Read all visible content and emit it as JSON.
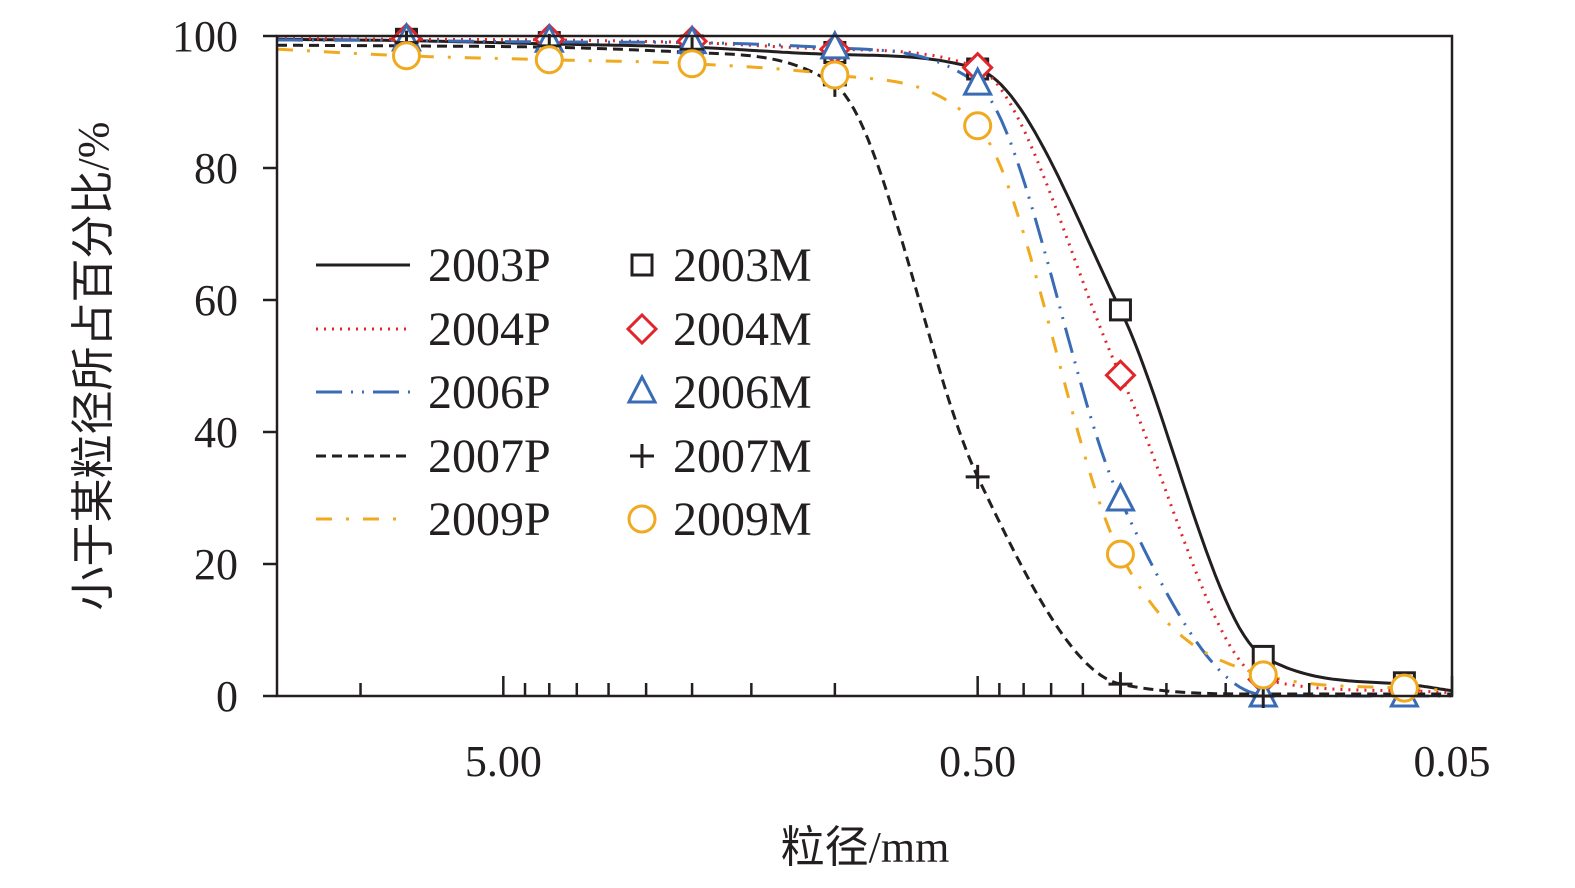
{
  "chart_data": {
    "type": "line",
    "title": "",
    "xlabel": "粒径/mm",
    "ylabel": "小于某粒径所占百分比/%",
    "xscale": "log",
    "x_reversed": true,
    "xlim": [
      15,
      0.05
    ],
    "ylim": [
      0,
      100
    ],
    "x_tick_labels": [
      {
        "value": 5,
        "label": "5.00"
      },
      {
        "value": 0.5,
        "label": "0.50"
      },
      {
        "value": 0.05,
        "label": "0.05"
      }
    ],
    "x_minor_ticks": [
      10,
      5,
      4.5,
      4,
      3.5,
      3,
      2.5,
      2,
      1.5,
      1,
      0.5,
      0.45,
      0.4,
      0.35,
      0.3,
      0.25,
      0.2,
      0.15,
      0.1,
      0.05
    ],
    "y_ticks": [
      0,
      20,
      40,
      60,
      80,
      100
    ],
    "grid": false,
    "legend_placement": "center-left",
    "colors": {
      "black": "#231f20",
      "red": "#e0262b",
      "blue": "#3a6bb5",
      "orange": "#f0aa1f"
    },
    "series": [
      {
        "name": "2003P",
        "kind": "line",
        "style": "solid",
        "color": "#231f20",
        "x": [
          15,
          8,
          4,
          2,
          1,
          0.5,
          0.25,
          0.125,
          0.063,
          0.05
        ],
        "y": [
          99.5,
          99.3,
          98.8,
          98.3,
          97.2,
          95.0,
          58.5,
          6.0,
          1.8,
          0.8
        ]
      },
      {
        "name": "2004P",
        "kind": "line",
        "style": "dotted",
        "color": "#e0262b",
        "x": [
          15,
          8,
          4,
          2,
          1,
          0.5,
          0.25,
          0.125,
          0.063,
          0.05
        ],
        "y": [
          99.6,
          99.5,
          99.4,
          99.0,
          98.0,
          95.2,
          48.6,
          2.5,
          0.8,
          0.5
        ]
      },
      {
        "name": "2006P",
        "kind": "line",
        "style": "dash-dot-dot",
        "color": "#3a6bb5",
        "x": [
          15,
          8,
          4,
          2,
          1,
          0.5,
          0.25,
          0.125,
          0.063,
          0.05
        ],
        "y": [
          99.4,
          99.3,
          99.1,
          99.0,
          98.2,
          92.7,
          29.7,
          0.2,
          0.0,
          0.0
        ]
      },
      {
        "name": "2007P",
        "kind": "line",
        "style": "dashed",
        "color": "#231f20",
        "x": [
          15,
          8,
          4,
          2,
          1,
          0.5,
          0.25,
          0.125,
          0.063,
          0.05
        ],
        "y": [
          98.6,
          98.5,
          98.3,
          97.5,
          92.6,
          33.2,
          1.8,
          0.3,
          0.3,
          0.3
        ]
      },
      {
        "name": "2009P",
        "kind": "line",
        "style": "dash-dot",
        "color": "#f0aa1f",
        "x": [
          15,
          8,
          4,
          2,
          1,
          0.5,
          0.25,
          0.125,
          0.063,
          0.05
        ],
        "y": [
          98.0,
          97.0,
          96.4,
          95.8,
          94.1,
          86.4,
          21.5,
          3.2,
          1.2,
          0.8
        ]
      },
      {
        "name": "2003M",
        "kind": "marker",
        "marker": "square",
        "color": "#231f20",
        "x": [
          8,
          4,
          2,
          1,
          0.5,
          0.25,
          0.125,
          0.063
        ],
        "y": [
          99.5,
          99.0,
          98.5,
          97.5,
          95.0,
          58.5,
          6.0,
          2.0
        ]
      },
      {
        "name": "2004M",
        "kind": "marker",
        "marker": "diamond",
        "color": "#e0262b",
        "x": [
          8,
          4,
          2,
          1,
          0.5,
          0.25,
          0.125,
          0.063
        ],
        "y": [
          99.6,
          99.5,
          99.2,
          98.0,
          95.2,
          48.6,
          2.5,
          0.8
        ]
      },
      {
        "name": "2006M",
        "kind": "marker",
        "marker": "triangle",
        "color": "#3a6bb5",
        "x": [
          8,
          4,
          2,
          1,
          0.5,
          0.25,
          0.125,
          0.063
        ],
        "y": [
          99.4,
          99.2,
          99.0,
          98.2,
          92.7,
          29.7,
          0.0,
          0.0
        ]
      },
      {
        "name": "2007M",
        "kind": "marker",
        "marker": "plus",
        "color": "#231f20",
        "x": [
          8,
          4,
          2,
          1,
          0.5,
          0.25,
          0.125
        ],
        "y": [
          99.0,
          98.5,
          98.0,
          92.6,
          33.2,
          1.8,
          0.0
        ]
      },
      {
        "name": "2009M",
        "kind": "marker",
        "marker": "circle",
        "color": "#f0aa1f",
        "x": [
          8,
          4,
          2,
          1,
          0.5,
          0.25,
          0.125,
          0.063
        ],
        "y": [
          97.0,
          96.4,
          95.8,
          94.1,
          86.4,
          21.5,
          3.2,
          1.2
        ]
      }
    ]
  }
}
